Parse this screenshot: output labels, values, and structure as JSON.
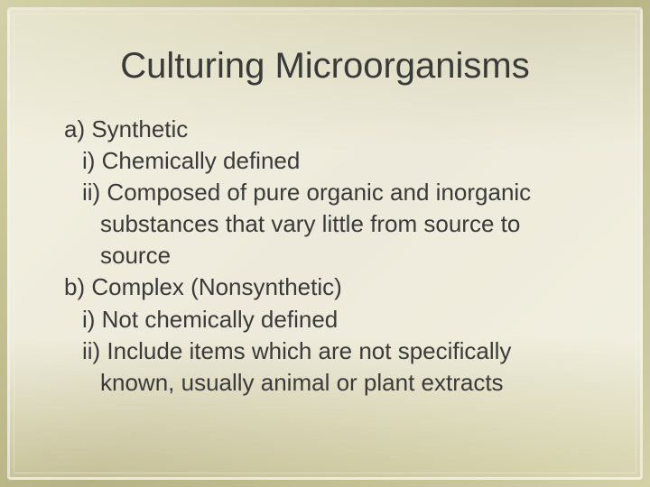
{
  "slide": {
    "title": "Culturing Microorganisms",
    "lines": [
      {
        "text": "a) Synthetic",
        "indent": "level-a"
      },
      {
        "text": "i) Chemically defined",
        "indent": "level-i"
      },
      {
        "text": "ii) Composed of pure organic and inorganic",
        "indent": "level-i"
      },
      {
        "text": "substances that vary little from source to source",
        "indent": "level-i-cont"
      },
      {
        "text": "b) Complex (Nonsynthetic)",
        "indent": "level-a"
      },
      {
        "text": "i) Not chemically defined",
        "indent": "level-i"
      },
      {
        "text": "ii) Include items which are not specifically",
        "indent": "level-i"
      },
      {
        "text": "known, usually animal or plant extracts",
        "indent": "level-i-cont"
      }
    ]
  },
  "style": {
    "background_gradient": [
      "#d4d1a8",
      "#c5c193",
      "#b8b385"
    ],
    "frame_border_color": "rgba(245,245,240,0.6)",
    "title_color": "#3a3a3a",
    "title_fontsize": 40,
    "body_color": "#3a3a3a",
    "body_fontsize": 26,
    "font_family": "Arial"
  }
}
